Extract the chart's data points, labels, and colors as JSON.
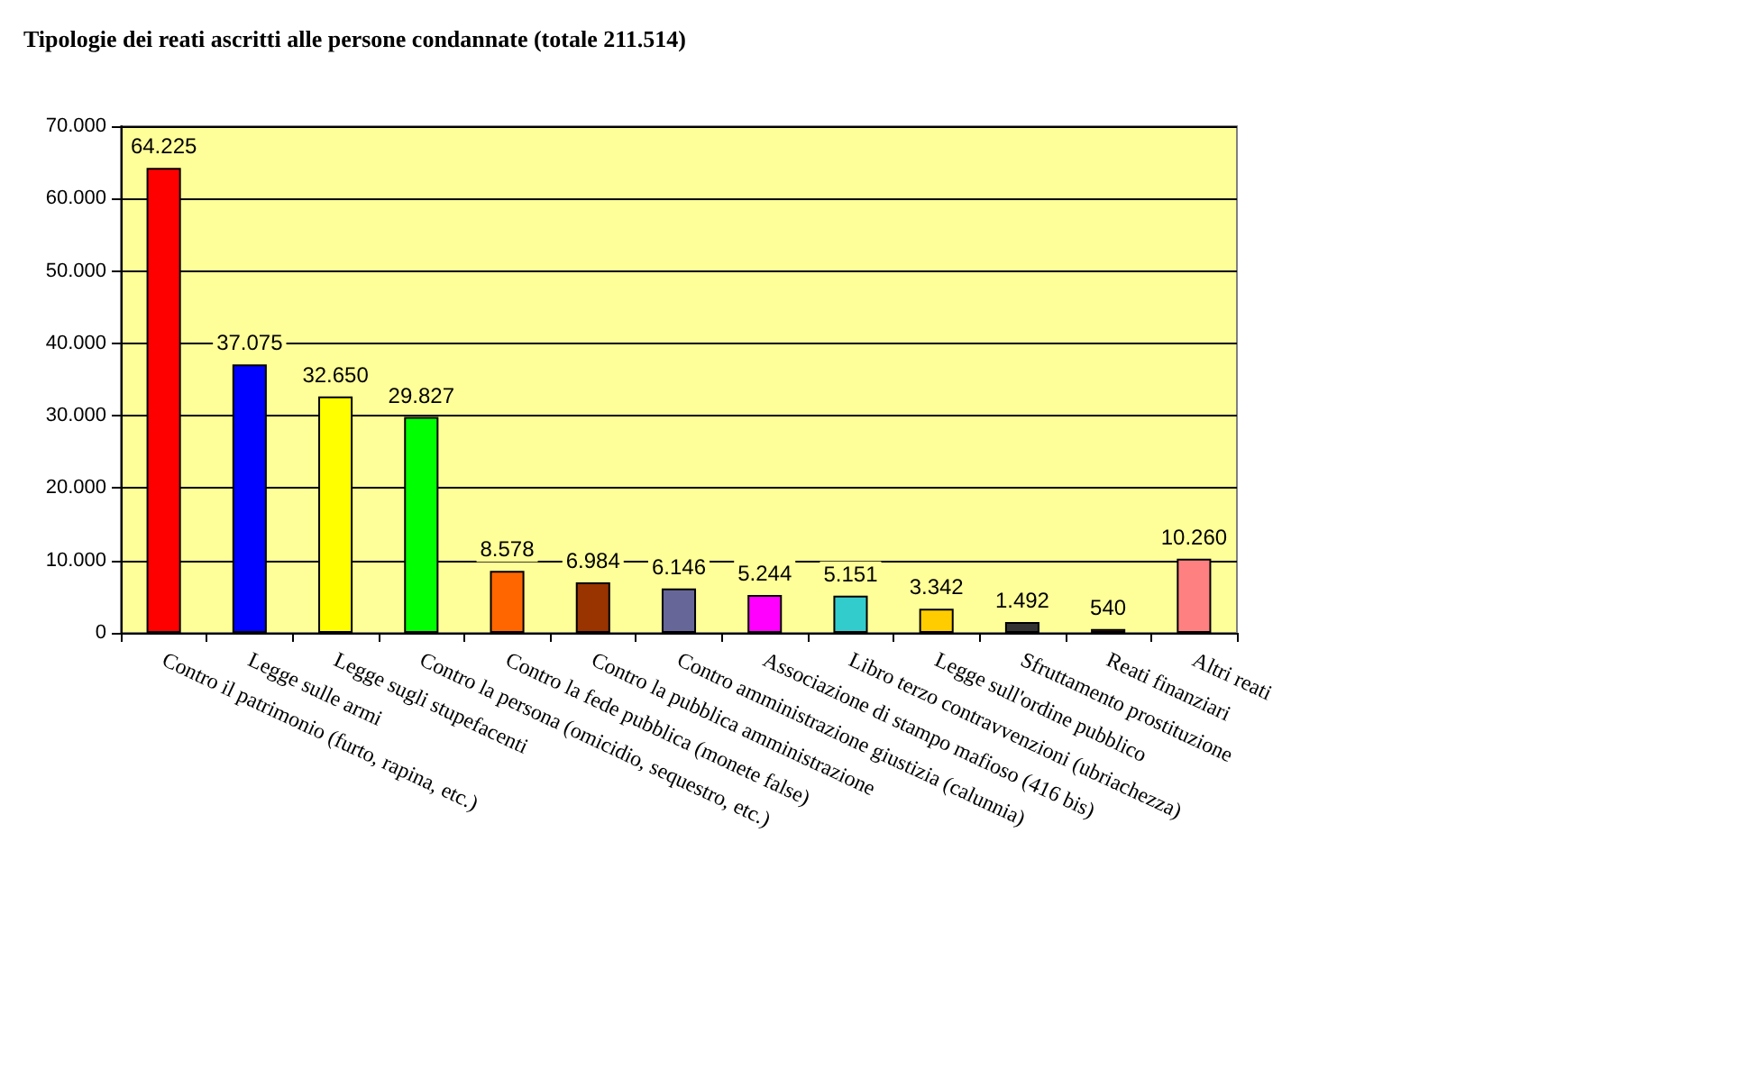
{
  "chart_data": {
    "type": "bar",
    "title": "Tipologie dei reati ascritti alle persone condannate (totale 211.514)",
    "categories": [
      "Contro il patrimonio (furto, rapina, etc.)",
      "Legge sulle armi",
      "Legge sugli stupefacenti",
      "Contro la persona (omicidio, sequestro, etc.)",
      "Contro la fede pubblica (monete false)",
      "Contro la pubblica amministrazione",
      "Contro amministrazione giustizia (calunnia)",
      "Associazione di stampo mafioso (416 bis)",
      "Libro terzo contravvenzioni (ubriachezza)",
      "Legge sull'ordine pubblico",
      "Sfruttamento prostituzione",
      "Reati finanziari",
      "Altri reati"
    ],
    "values": [
      64225,
      37075,
      32650,
      29827,
      8578,
      6984,
      6146,
      5244,
      5151,
      3342,
      1492,
      540,
      10260
    ],
    "value_labels": [
      "64.225",
      "37.075",
      "32.650",
      "29.827",
      "8.578",
      "6.984",
      "6.146",
      "5.244",
      "5.151",
      "3.342",
      "1.492",
      "540",
      "10.260"
    ],
    "colors": [
      "#ff0000",
      "#0000ff",
      "#ffff00",
      "#00ff00",
      "#ff6600",
      "#993300",
      "#666699",
      "#ff00ff",
      "#33cccc",
      "#ffcc00",
      "#333333",
      "#993366",
      "#ff8080"
    ],
    "ylim": [
      0,
      70000
    ],
    "yticks": [
      0,
      {
        "value": 10000,
        "label": "10.000"
      },
      {
        "value": 20000,
        "label": "20.000"
      },
      {
        "value": 30000,
        "label": "30.000"
      },
      {
        "value": 40000,
        "label": "40.000"
      },
      {
        "value": 50000,
        "label": "50.000"
      },
      {
        "value": 60000,
        "label": "60.000"
      },
      {
        "value": 70000,
        "label": "70.000"
      }
    ],
    "grid": "y"
  }
}
